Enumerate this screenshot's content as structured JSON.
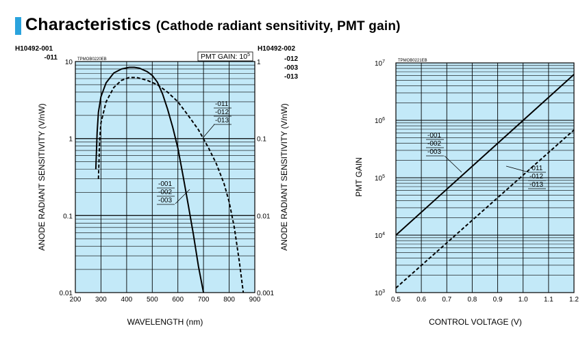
{
  "header": {
    "title": "Characteristics",
    "subtitle": "(Cathode radiant sensitivity, PMT gain)"
  },
  "colors": {
    "plot_bg": "#c3e9f8",
    "accent": "#2aa3dd",
    "line": "#000000"
  },
  "chart_data": [
    {
      "type": "line",
      "y_scale": "log",
      "model_left": [
        "H10492-001",
        "-011"
      ],
      "model_right": [
        "H10492-002",
        "-012",
        "-003",
        "-013"
      ],
      "figure_code": "TPMOB0220EB",
      "gain_label": "PMT GAIN: 10",
      "gain_exp": "5",
      "xlabel": "WAVELENGTH (nm)",
      "ylabel": "ANODE RADIANT SENSITIVITY (V/nW)",
      "ylabel_right": "ANODE RADIANT SENSITIVITY (V/nW)",
      "xlim": [
        200,
        900
      ],
      "ylim": [
        0.01,
        10
      ],
      "x_ticks": [
        "200",
        "300",
        "400",
        "500",
        "600",
        "700",
        "800",
        "900"
      ],
      "y_ticks_left": [
        "0.01",
        "0.1",
        "1",
        "10"
      ],
      "y_ticks_right": [
        "0.001",
        "0.01",
        "0.1",
        "1"
      ],
      "series": [
        {
          "name": "-001 / -002 / -003",
          "style": "solid",
          "labels": [
            "-001",
            "-002",
            "-003"
          ],
          "points": [
            [
              280,
              0.4
            ],
            [
              285,
              1.2
            ],
            [
              290,
              2.2
            ],
            [
              300,
              3.5
            ],
            [
              320,
              5.3
            ],
            [
              350,
              7.1
            ],
            [
              380,
              8.0
            ],
            [
              410,
              8.4
            ],
            [
              430,
              8.4
            ],
            [
              450,
              8.2
            ],
            [
              480,
              7.4
            ],
            [
              500,
              6.6
            ],
            [
              520,
              5.4
            ],
            [
              540,
              3.8
            ],
            [
              560,
              2.4
            ],
            [
              580,
              1.4
            ],
            [
              600,
              0.75
            ],
            [
              620,
              0.33
            ],
            [
              640,
              0.14
            ],
            [
              660,
              0.058
            ],
            [
              680,
              0.022
            ],
            [
              700,
              0.01
            ]
          ]
        },
        {
          "name": "-011 / -012 / -013",
          "style": "dashed",
          "labels": [
            "-011",
            "-012",
            "-013"
          ],
          "points": [
            [
              290,
              0.3
            ],
            [
              295,
              1.0
            ],
            [
              300,
              1.6
            ],
            [
              320,
              3.0
            ],
            [
              350,
              4.6
            ],
            [
              380,
              5.7
            ],
            [
              410,
              6.2
            ],
            [
              440,
              6.2
            ],
            [
              480,
              5.7
            ],
            [
              520,
              5.0
            ],
            [
              560,
              4.0
            ],
            [
              600,
              3.0
            ],
            [
              640,
              2.0
            ],
            [
              680,
              1.3
            ],
            [
              720,
              0.75
            ],
            [
              750,
              0.47
            ],
            [
              780,
              0.26
            ],
            [
              800,
              0.15
            ],
            [
              820,
              0.07
            ],
            [
              840,
              0.025
            ],
            [
              855,
              0.01
            ]
          ]
        }
      ]
    },
    {
      "type": "line",
      "y_scale": "log",
      "figure_code": "TPMOB0221EB",
      "xlabel": "CONTROL VOLTAGE (V)",
      "ylabel": "PMT GAIN",
      "xlim": [
        0.5,
        1.2
      ],
      "ylim": [
        1000,
        10000000
      ],
      "x_ticks": [
        "0.5",
        "0.6",
        "0.7",
        "0.8",
        "0.9",
        "1.0",
        "1.1",
        "1.2"
      ],
      "y_tick_base": "10",
      "y_tick_exps": [
        "3",
        "4",
        "5",
        "6",
        "7"
      ],
      "series": [
        {
          "name": "-001 / -002 / -003",
          "style": "solid",
          "labels": [
            "-001",
            "-002",
            "-003"
          ],
          "points": [
            [
              0.5,
              10000
            ],
            [
              1.2,
              6300000
            ]
          ]
        },
        {
          "name": "-011 / -012 / -013",
          "style": "dashed",
          "labels": [
            "-011",
            "-012",
            "-013"
          ],
          "points": [
            [
              0.5,
              1200
            ],
            [
              1.2,
              680000
            ]
          ]
        }
      ]
    }
  ]
}
